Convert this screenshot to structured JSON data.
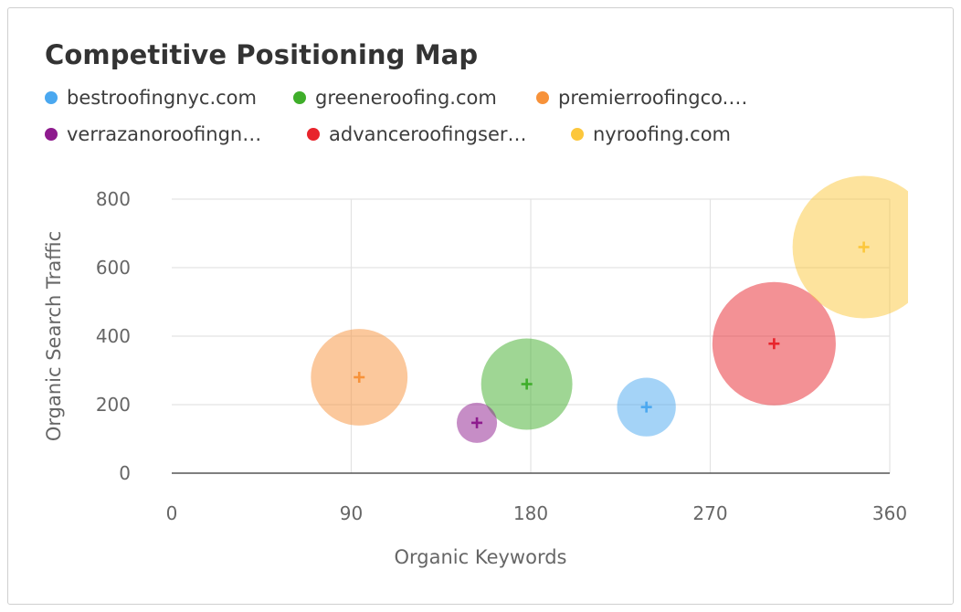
{
  "chart_data": {
    "type": "scatter",
    "title": "Competitive Positioning Map",
    "xlabel": "Organic Keywords",
    "ylabel": "Organic Search Traffic",
    "xlim": [
      0,
      360
    ],
    "ylim": [
      0,
      800
    ],
    "x_ticks": [
      "0",
      "90",
      "180",
      "270",
      "360"
    ],
    "y_ticks": [
      "0",
      "200",
      "400",
      "600",
      "800"
    ],
    "grid": true,
    "legend_position": "top",
    "series": [
      {
        "name": "bestroofingnyc.com",
        "color": "#4aa8f0",
        "x": 238,
        "y": 193,
        "bubble_size": 0.17
      },
      {
        "name": "greeneroofing.com",
        "color": "#3fae2a",
        "x": 178,
        "y": 260,
        "bubble_size": 0.41
      },
      {
        "name": "premierroofingco.…",
        "color": "#f7923a",
        "x": 94,
        "y": 280,
        "bubble_size": 0.46
      },
      {
        "name": "verrazanoroofingn…",
        "color": "#8e1b8e",
        "x": 153,
        "y": 147,
        "bubble_size": 0.08
      },
      {
        "name": "advanceroofingser…",
        "color": "#e8242c",
        "x": 302,
        "y": 378,
        "bubble_size": 0.75
      },
      {
        "name": "nyroofing.com",
        "color": "#fcc73c",
        "x": 347,
        "y": 660,
        "bubble_size": 1.0
      }
    ]
  }
}
